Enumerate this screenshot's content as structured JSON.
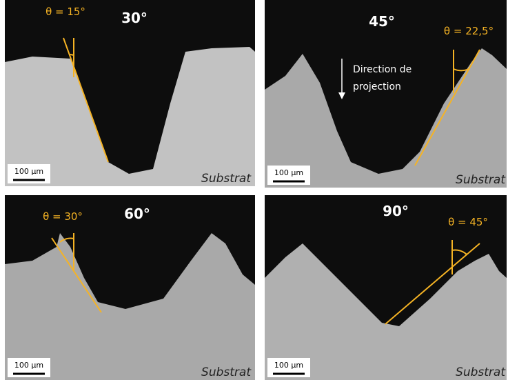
{
  "panels": [
    {
      "title": "30°",
      "angle_label": "θ = 15°",
      "scale_label": "100 µm",
      "substrate_label": "Substrat"
    },
    {
      "title": "45°",
      "angle_label": "θ = 22,5°",
      "scale_label": "100 µm",
      "substrate_label": "Substrat",
      "annotation": [
        "Direction de",
        "projection"
      ]
    },
    {
      "title": "60°",
      "angle_label": "θ = 30°",
      "scale_label": "100 µm",
      "substrate_label": "Substrat"
    },
    {
      "title": "90°",
      "angle_label": "θ = 45°",
      "scale_label": "100 µm",
      "substrate_label": "Substrat"
    }
  ]
}
